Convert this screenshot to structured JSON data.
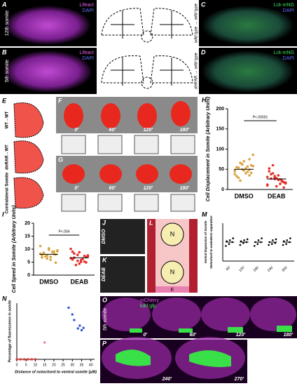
{
  "images": {
    "A": {
      "letter": "A",
      "channels": [
        "Lifeact",
        "DAPI"
      ],
      "side": "12th somite"
    },
    "B": {
      "letter": "B",
      "channels": [
        "Lifeact",
        "DAPI"
      ],
      "side": "5th somite"
    },
    "C": {
      "letter": "C",
      "channels": [
        "Lck-mNG",
        "DAPI"
      ],
      "side": "wild type → wild type"
    },
    "D": {
      "letter": "D",
      "channels": [
        "Lck-mNG",
        "DAPI"
      ],
      "side": "dnRAR → wild type"
    },
    "E": {
      "letter": "E",
      "rows": [
        "WT→WT",
        "dnRAR→WT",
        "Contralateral Somite"
      ]
    },
    "F": {
      "letter": "F",
      "times": [
        "0'",
        "60'",
        "120'",
        "180'"
      ]
    },
    "G": {
      "letter": "G",
      "times": [
        "0'",
        "60'",
        "120'",
        "180'"
      ]
    },
    "J": {
      "letter": "J",
      "condition": "DMSO"
    },
    "K": {
      "letter": "K",
      "condition": "DEAB"
    },
    "L": {
      "letter": "L",
      "labels": [
        "N",
        "N",
        "E"
      ]
    },
    "O": {
      "letter": "O",
      "channels": [
        "mCherry",
        "kdrl:gfp"
      ],
      "side": "5th somite",
      "times": [
        "0'",
        "60'",
        "120'",
        "180'"
      ]
    },
    "P": {
      "letter": "P",
      "times": [
        "240'",
        "270'"
      ]
    }
  },
  "chart_data": [
    {
      "type": "strip",
      "letter": "H",
      "ylabel": "Cell Displacement in Somite (Arbitrary Units)",
      "annotation": "P<.00001",
      "categories": [
        "DMSO",
        "DEAB"
      ],
      "colors": [
        "#d9a441",
        "#e8302a"
      ],
      "values": [
        [
          48,
          62,
          35,
          55,
          70,
          41,
          29,
          52,
          58,
          66,
          44,
          38,
          50,
          75,
          33,
          47,
          60,
          54,
          40,
          86,
          22,
          57,
          45,
          63,
          49
        ],
        [
          12,
          30,
          22,
          45,
          8,
          18,
          27,
          35,
          15,
          40,
          25,
          10,
          33,
          20,
          52,
          28,
          5,
          38,
          24,
          17,
          60,
          14,
          31,
          26,
          21
        ]
      ],
      "means": [
        50,
        26
      ],
      "ylim": [
        0,
        200
      ],
      "yticks": [
        0,
        50,
        100,
        150,
        200
      ]
    },
    {
      "type": "strip",
      "letter": "I",
      "ylabel": "Cell Speed in Somite (Arbitrary Units)",
      "annotation": "P<.004",
      "categories": [
        "DMSO",
        "DEAB"
      ],
      "colors": [
        "#d9a441",
        "#e8302a"
      ],
      "values": [
        [
          8.2,
          7.5,
          9.1,
          6.8,
          10.3,
          7.9,
          8.6,
          5.9,
          9.5,
          7.2,
          8.9,
          11.2,
          6.4,
          8.1,
          7.7,
          9.8,
          4.8,
          8.4,
          7.0,
          9.2
        ],
        [
          6.5,
          7.8,
          5.2,
          9.0,
          4.4,
          6.9,
          8.3,
          5.8,
          7.1,
          3.9,
          6.2,
          10.1,
          5.5,
          7.4,
          6.0,
          8.8,
          4.9,
          6.7,
          5.1,
          7.6
        ]
      ],
      "means": [
        8,
        6.7
      ],
      "ylim": [
        0,
        20
      ],
      "yticks": [
        0,
        5,
        10,
        15,
        20
      ]
    },
    {
      "type": "strip",
      "letter": "M",
      "ylabel": [
        "Ventral Expansion of Somite",
        "Notochord to endoderm separation"
      ],
      "categories": [
        "60'",
        "120'",
        "180'",
        "240'",
        "300'"
      ],
      "colors": [
        "#000000",
        "#000000",
        "#000000",
        "#000000",
        "#000000"
      ],
      "values": [
        [
          0.8,
          0.9,
          1.0,
          1.05,
          1.1,
          1.2
        ],
        [
          0.85,
          0.95,
          1.0,
          1.05,
          1.1,
          1.15
        ],
        [
          0.8,
          0.9,
          1.0,
          1.0,
          1.1,
          1.2
        ],
        [
          0.85,
          0.9,
          0.95,
          1.0,
          1.1,
          1.15
        ],
        [
          0.85,
          0.9,
          1.0,
          1.05,
          1.1,
          1.2
        ]
      ],
      "means": [
        1.0,
        1.0,
        1.0,
        1.0,
        1.0
      ],
      "ylim": [
        0,
        2
      ]
    },
    {
      "type": "scatter",
      "letter": "N",
      "ylabel": "Percentage of fluorescence in somite",
      "xlabel": "Distance of notochord to ventral somite (µM)",
      "xlim": [
        0,
        42
      ],
      "ylim": [
        0,
        100
      ],
      "xticks": [
        0,
        5,
        10,
        15,
        20,
        25,
        30,
        35,
        40
      ],
      "series": [
        {
          "color": "#e8302a",
          "x": [
            0,
            2,
            4,
            6,
            8,
            10
          ],
          "values": [
            0,
            0,
            0,
            0,
            0,
            0
          ]
        },
        {
          "color": "#e87aa0",
          "x": [
            15
          ],
          "values": [
            30
          ]
        },
        {
          "color": "#2a4fd6",
          "x": [
            28,
            30,
            31,
            33,
            34,
            35,
            36
          ],
          "values": [
            92,
            80,
            70,
            55,
            60,
            52,
            56
          ]
        }
      ]
    }
  ]
}
